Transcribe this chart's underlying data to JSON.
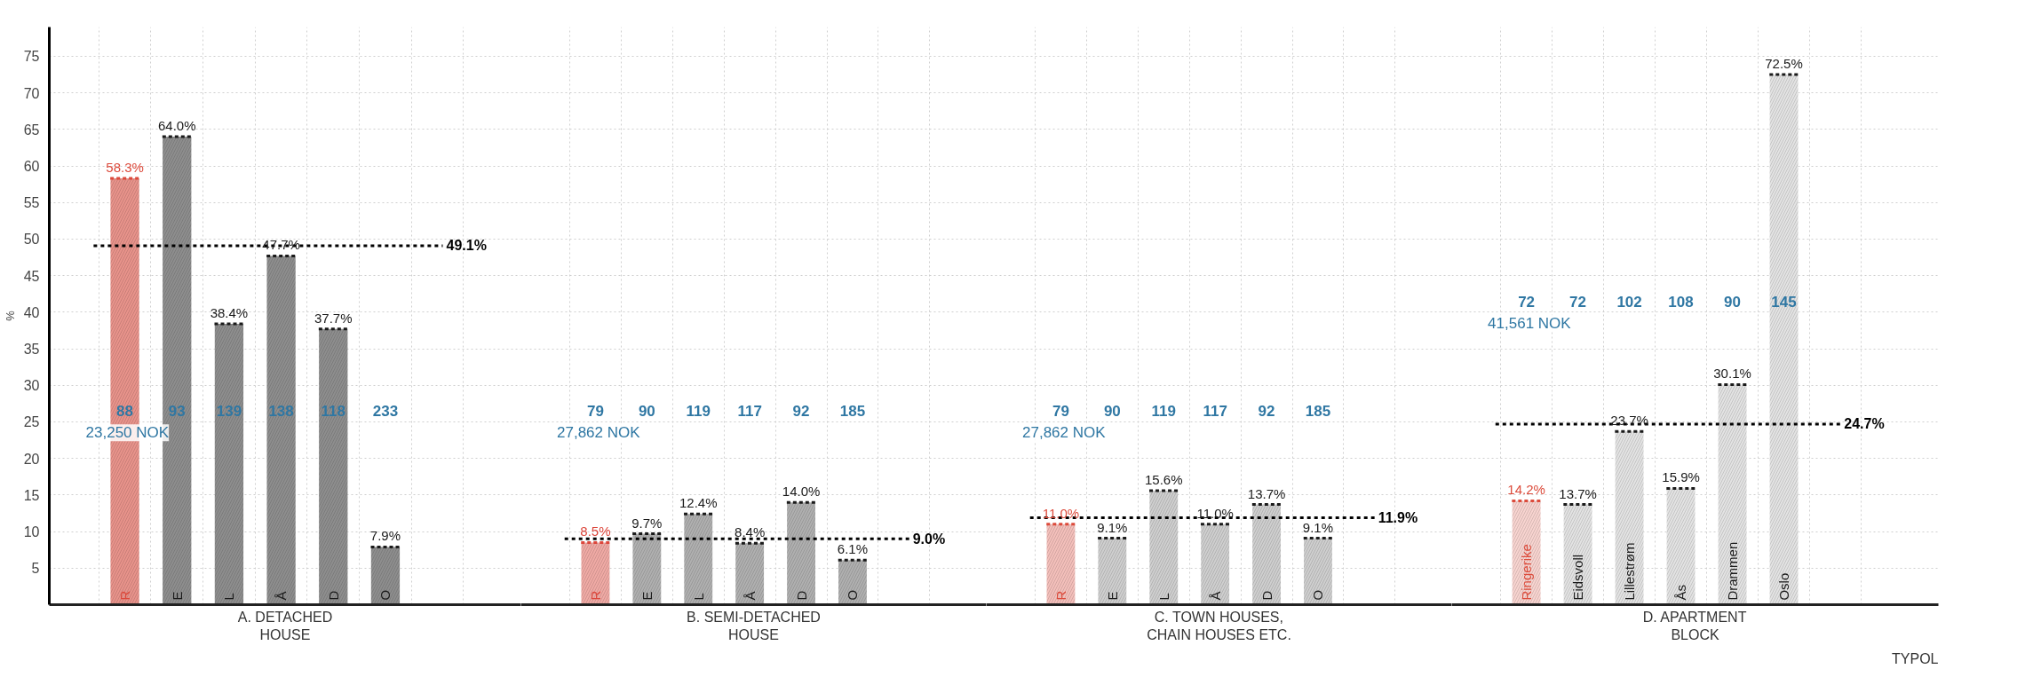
{
  "chart_data": [
    {
      "type": "bar",
      "xlabel": "A. DETACHED\nHOUSE",
      "ylabel": "%",
      "categories": [
        "R",
        "E",
        "L",
        "Å",
        "D",
        "O"
      ],
      "ylim": [
        0,
        79
      ],
      "yticks": [
        5,
        10,
        15,
        20,
        25,
        30,
        35,
        40,
        45,
        50,
        55,
        60,
        65,
        70,
        75
      ],
      "grid": true,
      "series": [
        {
          "color": "#e8938b",
          "values": [
            58.3,
            null,
            null,
            null,
            null,
            null
          ],
          "value_labels": [
            "58.3%",
            null,
            null,
            null,
            null,
            null
          ]
        },
        {
          "color": "#8e8e8e",
          "values": [
            null,
            64.0,
            38.4,
            47.7,
            37.7,
            7.9
          ],
          "value_labels": [
            null,
            "64.0%",
            "38.4%",
            "47.7%",
            "37.7%",
            "7.9%"
          ]
        }
      ],
      "ref_lines": [
        {
          "axis": "y",
          "value": 49.1,
          "label": "49.1%",
          "color": "#000000",
          "line_style": "dashed"
        }
      ],
      "annotations": [
        "88",
        "93",
        "139",
        "138",
        "118",
        "233",
        "23,250 NOK"
      ]
    },
    {
      "type": "bar",
      "xlabel": "B. SEMI-DETACHED\nHOUSE",
      "categories": [
        "R",
        "E",
        "L",
        "Å",
        "D",
        "O"
      ],
      "ylim": [
        0,
        79
      ],
      "yticks": [
        5,
        10,
        15,
        20,
        25,
        30,
        35,
        40,
        45,
        50,
        55,
        60,
        65,
        70,
        75
      ],
      "grid": true,
      "tick_labels": "x",
      "series": [
        {
          "color": "#f0aaa5",
          "values": [
            8.5,
            null,
            null,
            null,
            null,
            null
          ],
          "value_labels": [
            "8.5%",
            null,
            null,
            null,
            null,
            null
          ]
        },
        {
          "color": "#b0b0b0",
          "values": [
            null,
            9.7,
            12.4,
            8.4,
            14.0,
            6.1
          ],
          "value_labels": [
            null,
            "9.7%",
            "12.4%",
            "8.4%",
            "14.0%",
            "6.1%"
          ]
        }
      ],
      "ref_lines": [
        {
          "axis": "y",
          "value": 9.0,
          "label": "9.0%",
          "color": "#000000",
          "line_style": "dashed"
        }
      ],
      "annotations": [
        "79",
        "90",
        "119",
        "117",
        "92",
        "185",
        "27,862 NOK"
      ]
    },
    {
      "type": "bar",
      "xlabel": "C. TOWN HOUSES,\nCHAIN HOUSES ETC.",
      "categories": [
        "R",
        "E",
        "L",
        "Å",
        "D",
        "O"
      ],
      "ylim": [
        0,
        79
      ],
      "yticks": [
        5,
        10,
        15,
        20,
        25,
        30,
        35,
        40,
        45,
        50,
        55,
        60,
        65,
        70,
        75
      ],
      "grid": true,
      "tick_labels": "x",
      "series": [
        {
          "color": "#f4c0bb",
          "values": [
            11.0,
            null,
            null,
            null,
            null,
            null
          ],
          "value_labels": [
            "11.0%",
            null,
            null,
            null,
            null,
            null
          ]
        },
        {
          "color": "#cfcfcf",
          "values": [
            null,
            9.1,
            15.6,
            11.0,
            13.7,
            9.1
          ],
          "value_labels": [
            null,
            "9.1%",
            "15.6%",
            "11.0%",
            "13.7%",
            "9.1%"
          ]
        }
      ],
      "ref_lines": [
        {
          "axis": "y",
          "value": 11.9,
          "label": "11.9%",
          "color": "#000000",
          "line_style": "dashed"
        }
      ],
      "annotations": [
        "79",
        "90",
        "119",
        "117",
        "92",
        "185",
        "27,862 NOK"
      ]
    },
    {
      "type": "bar",
      "xlabel": "D. APARTMENT\nBLOCK",
      "categories": [
        "Ringerike",
        "Eidsvoll",
        "Lillestrøm",
        "Ås",
        "Drammen",
        "Oslo"
      ],
      "ylim": [
        0,
        79
      ],
      "yticks": [
        5,
        10,
        15,
        20,
        25,
        30,
        35,
        40,
        45,
        50,
        55,
        60,
        65,
        70,
        75
      ],
      "grid": true,
      "tick_labels": "x",
      "series": [
        {
          "color": "#f8d4d0",
          "values": [
            14.2,
            null,
            null,
            null,
            null,
            null
          ],
          "value_labels": [
            "14.2%",
            null,
            null,
            null,
            null,
            null
          ]
        },
        {
          "color": "#e3e3e3",
          "values": [
            null,
            13.7,
            23.7,
            15.9,
            30.1,
            72.5
          ],
          "value_labels": [
            null,
            "13.7%",
            "23.7%",
            "15.9%",
            "30.1%",
            "72.5%"
          ]
        }
      ],
      "ref_lines": [
        {
          "axis": "y",
          "value": 24.7,
          "label": "24.7%",
          "color": "#000000",
          "line_style": "dashed"
        }
      ],
      "annotations": [
        "72",
        "72",
        "102",
        "108",
        "90",
        "145",
        "41,561 NOK",
        "TYPOL"
      ]
    }
  ]
}
